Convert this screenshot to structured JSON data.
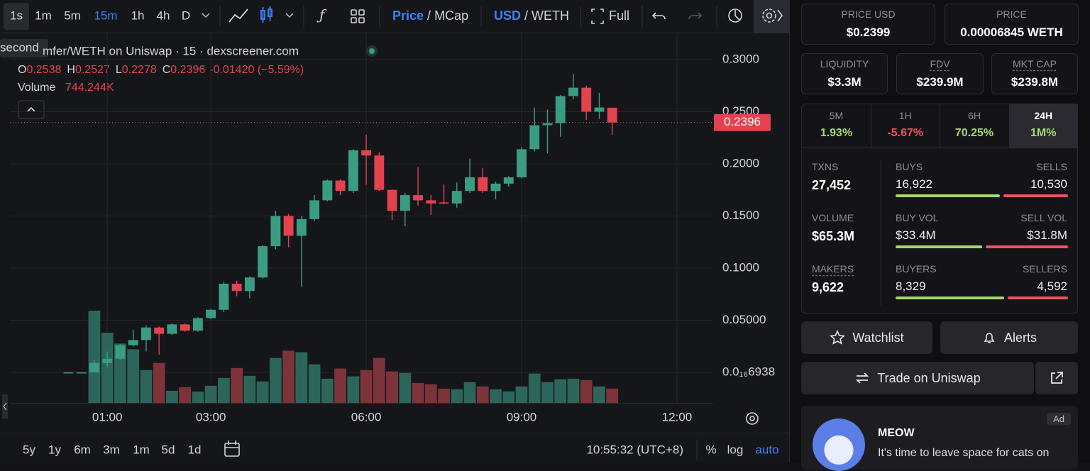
{
  "toolbar": {
    "intervals": [
      "1s",
      "1m",
      "5m",
      "15m",
      "1h",
      "4h",
      "D"
    ],
    "price_toggle": [
      "Price",
      "MCap"
    ],
    "currency_toggle": [
      "USD",
      "WETH"
    ],
    "separator": "/",
    "full": "Full"
  },
  "tooltip": "second",
  "chart_data": {
    "type": "candlestick",
    "title": "mfer/WETH on Uniswap · 15 · dexscreener.com",
    "legend": {
      "o": "O",
      "h": "H",
      "l": "L",
      "c": "C",
      "change": "-0.01420 (−5.59%)",
      "volume": "Volume",
      "volume_value": "744.244K"
    },
    "x": [
      0.25,
      0.5,
      0.75,
      1,
      1.25,
      1.5,
      1.75,
      2,
      2.25,
      2.5,
      2.75,
      3,
      3.25,
      3.5,
      3.75,
      4,
      4.25,
      4.5,
      4.75,
      5,
      5.25,
      5.5,
      5.75,
      6,
      6.25,
      6.5,
      6.75,
      7,
      7.25,
      7.5,
      7.75,
      8,
      8.25,
      8.5,
      8.75,
      9,
      9.25,
      9.5,
      9.75,
      10,
      10.25,
      10.5,
      10.75
    ],
    "open": [
      0,
      0,
      0,
      0.009,
      0.013,
      0.026,
      0.031,
      0.043,
      0.037,
      0.046,
      0.04,
      0.052,
      0.06,
      0.085,
      0.078,
      0.091,
      0.121,
      0.15,
      0.131,
      0.147,
      0.165,
      0.184,
      0.174,
      0.213,
      0.208,
      0.175,
      0.155,
      0.17,
      0.165,
      0.163,
      0.162,
      0.174,
      0.187,
      0.174,
      0.181,
      0.187,
      0.214,
      0.237,
      0.239,
      0.265,
      0.273,
      0.25,
      0.2538
    ],
    "high": [
      0,
      0,
      0.012,
      0.02,
      0.027,
      0.041,
      0.045,
      0.044,
      0.047,
      0.047,
      0.053,
      0.061,
      0.087,
      0.088,
      0.092,
      0.122,
      0.155,
      0.152,
      0.15,
      0.17,
      0.185,
      0.185,
      0.214,
      0.228,
      0.211,
      0.176,
      0.172,
      0.197,
      0.17,
      0.18,
      0.182,
      0.205,
      0.196,
      0.183,
      0.188,
      0.216,
      0.254,
      0.252,
      0.266,
      0.286,
      0.275,
      0.268,
      0.2527
    ],
    "low": [
      0,
      0,
      0,
      0.005,
      0.012,
      0.025,
      0.02,
      0.017,
      0.036,
      0.039,
      0.039,
      0.051,
      0.058,
      0.073,
      0.071,
      0.09,
      0.118,
      0.12,
      0.082,
      0.145,
      0.164,
      0.17,
      0.172,
      0.18,
      0.174,
      0.146,
      0.14,
      0.16,
      0.151,
      0.161,
      0.158,
      0.172,
      0.172,
      0.166,
      0.178,
      0.186,
      0.212,
      0.21,
      0.226,
      0.262,
      0.242,
      0.243,
      0.2278
    ],
    "close": [
      0,
      0,
      0.009,
      0.013,
      0.026,
      0.031,
      0.043,
      0.037,
      0.046,
      0.04,
      0.052,
      0.06,
      0.085,
      0.078,
      0.091,
      0.121,
      0.15,
      0.131,
      0.147,
      0.165,
      0.184,
      0.174,
      0.213,
      0.208,
      0.175,
      0.155,
      0.17,
      0.165,
      0.162,
      0.162,
      0.174,
      0.187,
      0.174,
      0.181,
      0.187,
      0.214,
      0.237,
      0.239,
      0.265,
      0.273,
      0.25,
      0.254,
      0.2396
    ],
    "volume": [
      null,
      null,
      4800,
      3650,
      3090,
      2790,
      1710,
      2080,
      630,
      820,
      590,
      890,
      1300,
      1820,
      1410,
      1120,
      2340,
      2720,
      2640,
      2010,
      1260,
      1790,
      1380,
      1710,
      2340,
      1640,
      1560,
      1040,
      970,
      740,
      710,
      1080,
      860,
      710,
      600,
      860,
      1530,
      1080,
      1230,
      1260,
      1190,
      860,
      744.244
    ],
    "xlim": [
      -0.88,
      12.7
    ],
    "xticks": [
      {
        "value": 1,
        "label": "01:00"
      },
      {
        "value": 3,
        "label": "03:00"
      },
      {
        "value": 6,
        "label": "06:00"
      },
      {
        "value": 9,
        "label": "09:00"
      },
      {
        "value": 12,
        "label": "12:00"
      }
    ],
    "ylim": [
      -0.0293,
      0.3231
    ],
    "yticks": [
      {
        "value": 6.938e-18,
        "label": "0.0₁₆6938"
      },
      {
        "value": 0.05,
        "label": "0.05000"
      },
      {
        "value": 0.1,
        "label": "0.1000"
      },
      {
        "value": 0.15,
        "label": "0.1500"
      },
      {
        "value": 0.2,
        "label": "0.2000"
      },
      {
        "value": 0.25,
        "label": "0.2500"
      },
      {
        "value": 0.3,
        "label": "0.3000"
      }
    ],
    "grid": true,
    "up_color": "#3b9c84",
    "down_color": "#e2434f",
    "volume_up_color": "#2c655a",
    "volume_down_color": "#7c3339"
  },
  "footer": {
    "ranges": [
      "5y",
      "1y",
      "6m",
      "3m",
      "1m",
      "5d",
      "1d"
    ],
    "clock": "10:55:32 (UTC+8)",
    "percent": "%",
    "log": "log",
    "auto": "auto"
  },
  "panel": {
    "price_cards": [
      {
        "label": "PRICE USD",
        "value": "$0.2399"
      },
      {
        "label": "PRICE",
        "value": "0.00006845 WETH"
      }
    ],
    "stat_cards": [
      {
        "label": "LIQUIDITY",
        "value": "$3.3M"
      },
      {
        "label": "FDV",
        "value": "$239.9M"
      },
      {
        "label": "MKT CAP",
        "value": "$239.8M"
      }
    ],
    "tabs": [
      {
        "label": "5M",
        "change": {
          "value": 1.93,
          "label": "1.93%"
        }
      },
      {
        "label": "1H",
        "change": {
          "value": -5.67,
          "label": "-5.67%"
        }
      },
      {
        "label": "6H",
        "change": {
          "value": 70.25,
          "label": "70.25%"
        }
      },
      {
        "label": "24H",
        "change": {
          "value": 1000000,
          "label": "1M%"
        }
      }
    ],
    "stats": [
      {
        "label": "TXNS",
        "value": "27,452",
        "buy_label": "BUYS",
        "buy": {
          "value": 16922,
          "label": "16,922"
        },
        "sell_label": "SELLS",
        "sell": {
          "value": 10530,
          "label": "10,530"
        }
      },
      {
        "label": "VOLUME",
        "value": "$65.3M",
        "buy_label": "BUY VOL",
        "buy": {
          "value": 33.4,
          "label": "$33.4M"
        },
        "sell_label": "SELL VOL",
        "sell": {
          "value": 31.8,
          "label": "$31.8M"
        }
      },
      {
        "label": "MAKERS",
        "value": "9,622",
        "buy_label": "BUYERS",
        "buy": {
          "value": 8329,
          "label": "8,329"
        },
        "sell_label": "SELLERS",
        "sell": {
          "value": 4592,
          "label": "4,592"
        }
      }
    ],
    "watchlist": "Watchlist",
    "alerts": "Alerts",
    "trade": "Trade on Uniswap",
    "ad": {
      "badge": "Ad",
      "name": "MEOW",
      "text": "It's time to leave space for cats on"
    }
  }
}
